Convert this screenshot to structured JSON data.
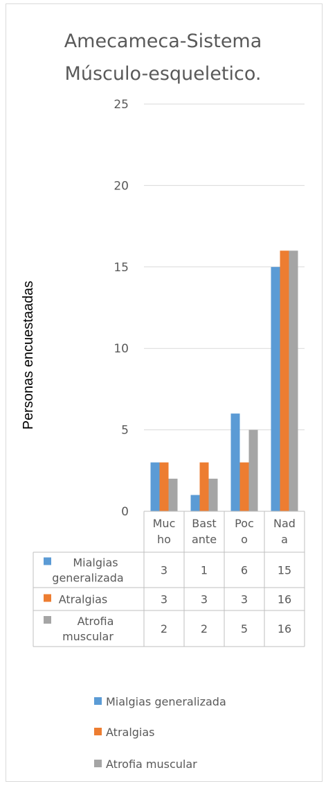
{
  "chart_data": {
    "type": "bar",
    "title_lines": [
      "Amecameca-Sistema",
      "Músculo-esqueletico."
    ],
    "ylabel": "Personas encuestaadas",
    "xlabel": "",
    "ylim": [
      0,
      25
    ],
    "yticks": [
      0,
      5,
      10,
      15,
      20,
      25
    ],
    "grid": true,
    "legend_position": "bottom",
    "categories": [
      "Mucho",
      "Bastante",
      "Poco",
      "Nada"
    ],
    "category_label_lines": [
      [
        "Muc",
        "ho"
      ],
      [
        "Bast",
        "ante"
      ],
      [
        "Poc",
        "o"
      ],
      [
        "Nad",
        "a"
      ]
    ],
    "series": [
      {
        "name": "Mialgias generalizada",
        "table_label_lines": [
          "Mialgias",
          "generalizada"
        ],
        "color": "#5b9bd5",
        "values": [
          3,
          1,
          6,
          15
        ]
      },
      {
        "name": "Atralgias",
        "table_label_lines": [
          "Atralgias"
        ],
        "color": "#ed7d31",
        "values": [
          3,
          3,
          3,
          16
        ]
      },
      {
        "name": "Atrofia muscular",
        "table_label_lines": [
          "Atrofia",
          "muscular"
        ],
        "color": "#a5a5a5",
        "values": [
          2,
          2,
          5,
          16
        ]
      }
    ]
  }
}
